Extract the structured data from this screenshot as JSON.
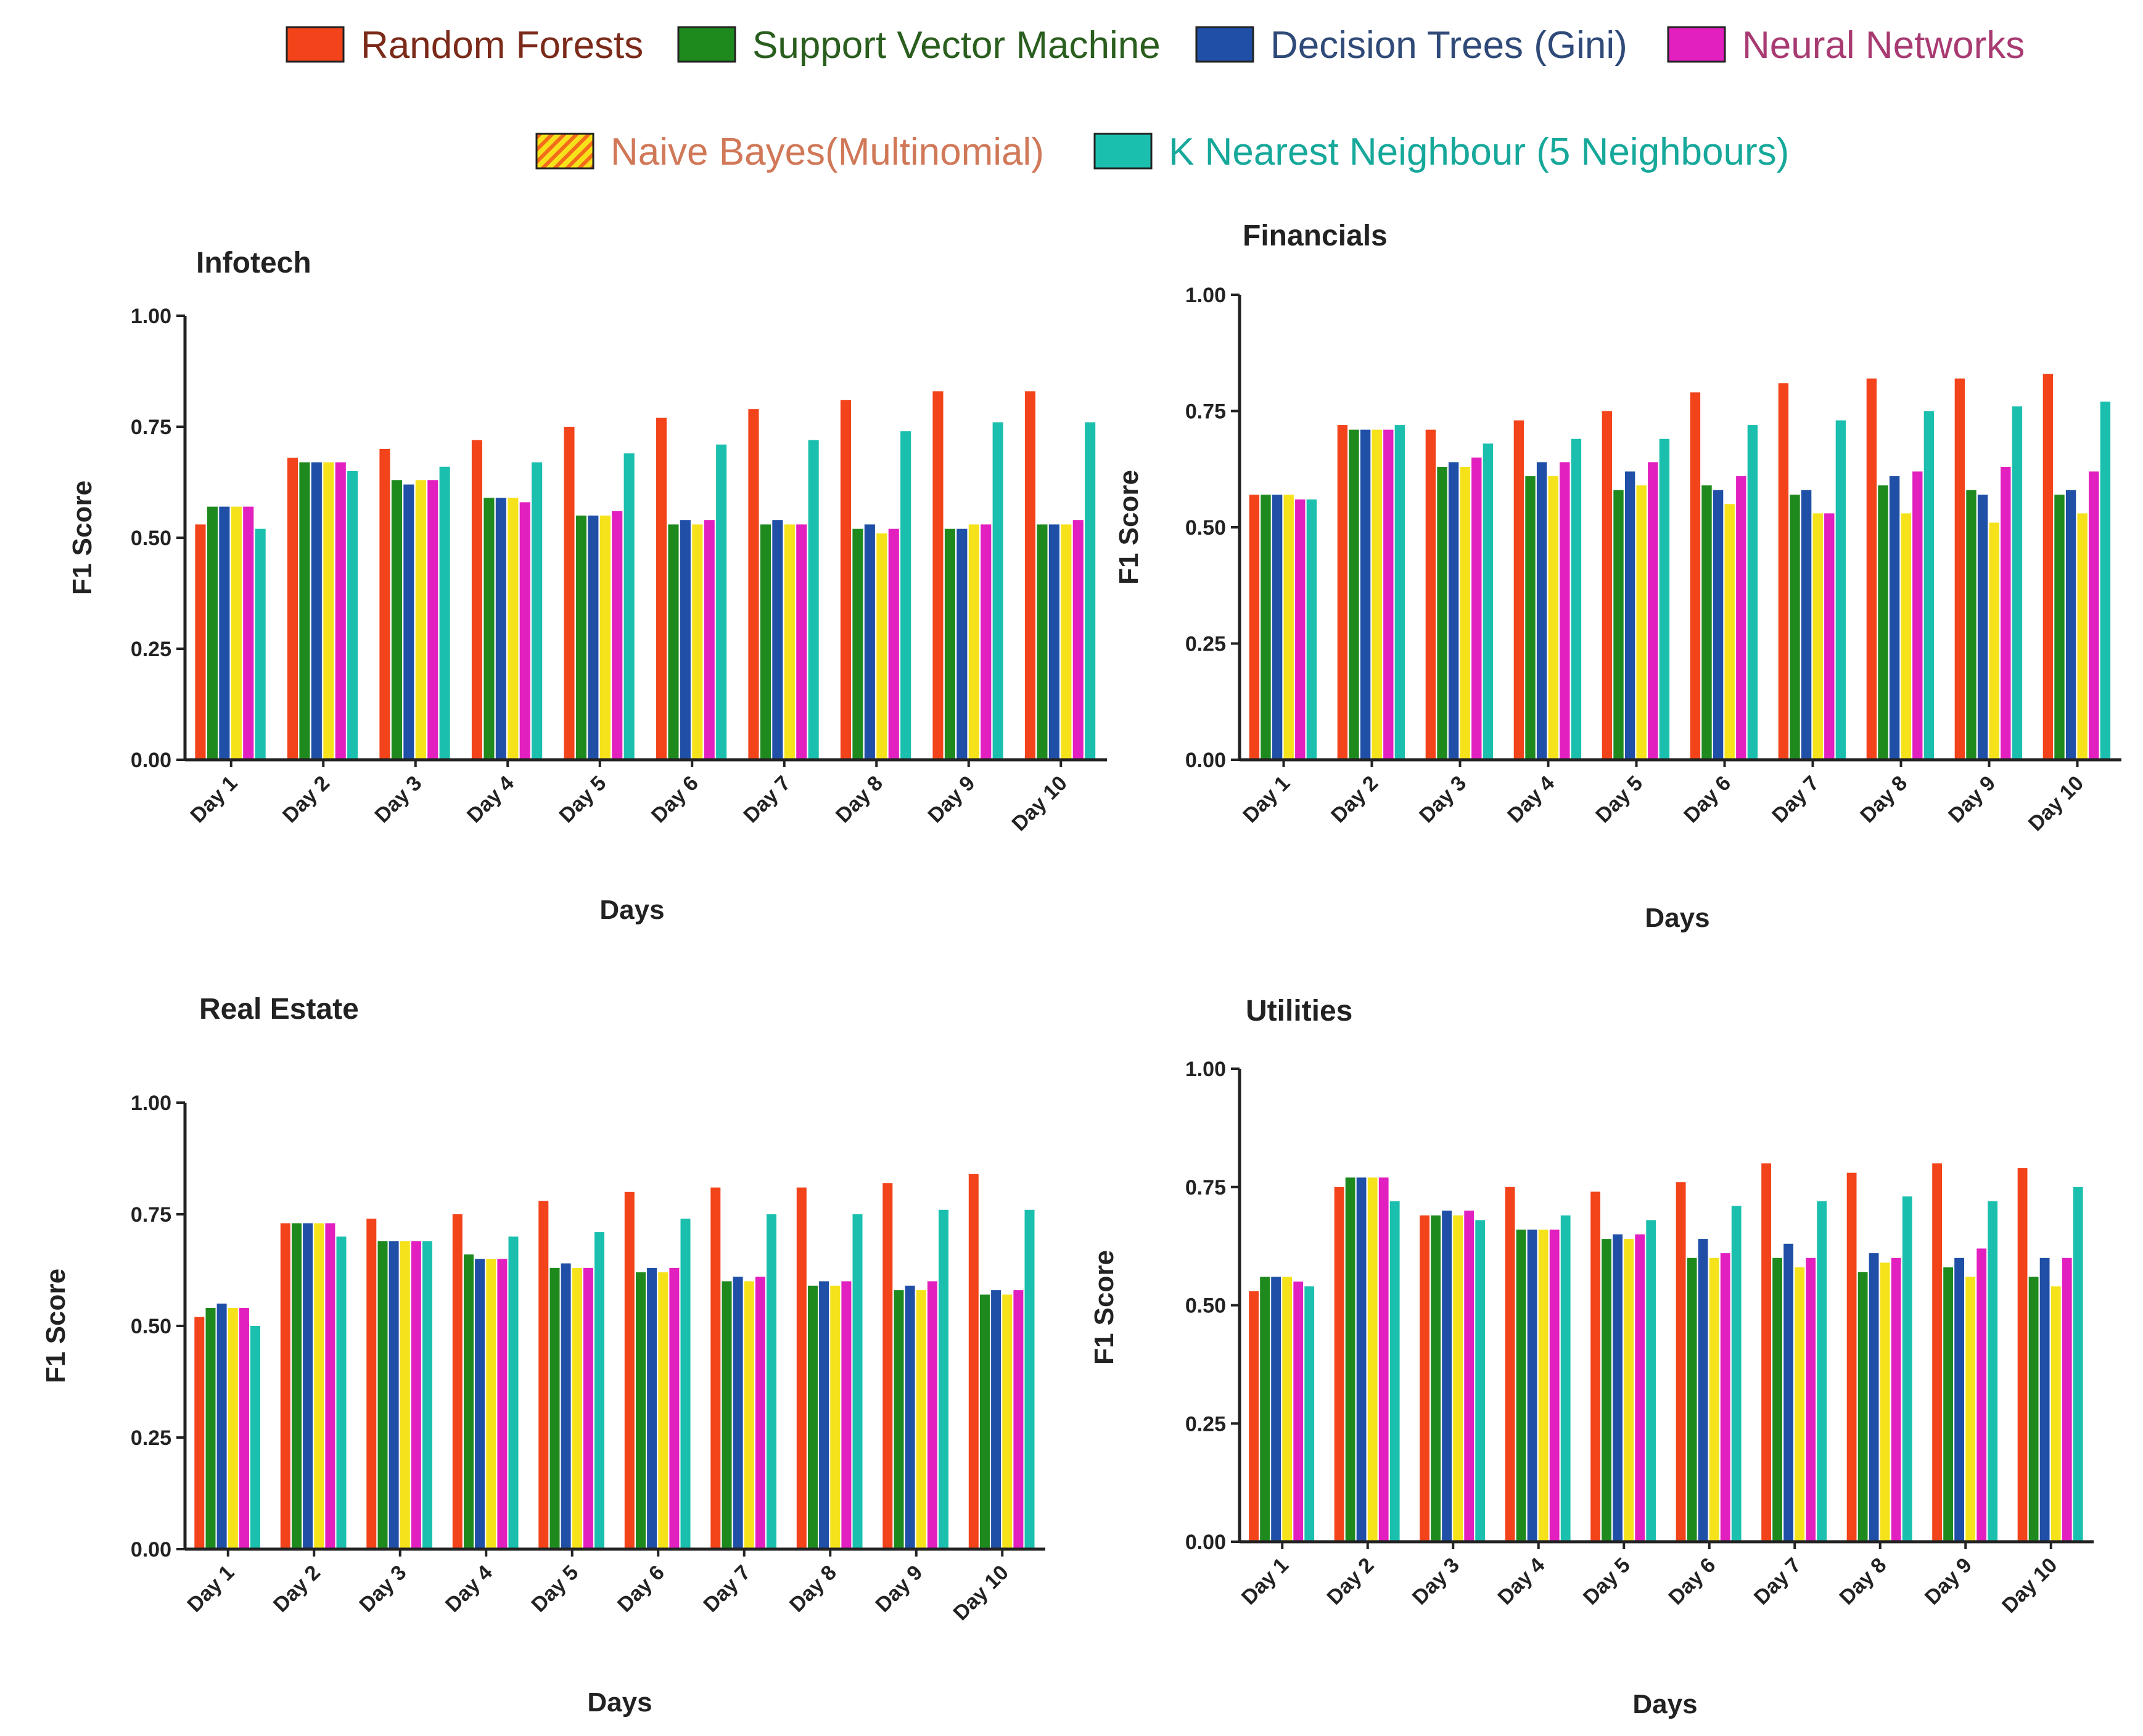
{
  "legend": {
    "items": [
      {
        "label": "Random Forests",
        "color": "#f2431a",
        "text_color": "#7b2a1a"
      },
      {
        "label": "Support Vector Machine",
        "color": "#1e8a1e",
        "text_color": "#2a5e1e"
      },
      {
        "label": "Decision Trees (Gini)",
        "color": "#1f4fa6",
        "text_color": "#2f4a78"
      },
      {
        "label": "Neural Networks",
        "color": "#e21fbf",
        "text_color": "#a83a72"
      },
      {
        "label": "Naive Bayes(Multinomial)",
        "color": "#f5e21a",
        "text_color": "#d07858"
      },
      {
        "label": "K Nearest Neighbour (5 Neighbours)",
        "color": "#1bbfae",
        "text_color": "#16a89a"
      }
    ]
  },
  "chart_data": [
    {
      "type": "bar",
      "title": "Infotech",
      "xlabel": "Days",
      "ylabel": "F1 Score",
      "ylim": [
        0,
        1
      ],
      "yticks": [
        "0.00",
        "0.25",
        "0.50",
        "0.75",
        "1.00"
      ],
      "categories": [
        "Day 1",
        "Day 2",
        "Day 3",
        "Day 4",
        "Day 5",
        "Day 6",
        "Day 7",
        "Day 8",
        "Day 9",
        "Day 10"
      ],
      "series": [
        {
          "name": "Random Forests",
          "values": [
            0.53,
            0.68,
            0.7,
            0.72,
            0.75,
            0.77,
            0.79,
            0.81,
            0.83,
            0.83
          ]
        },
        {
          "name": "Support Vector Machine",
          "values": [
            0.57,
            0.67,
            0.63,
            0.59,
            0.55,
            0.53,
            0.53,
            0.52,
            0.52,
            0.53
          ]
        },
        {
          "name": "Decision Trees (Gini)",
          "values": [
            0.57,
            0.67,
            0.62,
            0.59,
            0.55,
            0.54,
            0.54,
            0.53,
            0.52,
            0.53
          ]
        },
        {
          "name": "Naive Bayes(Multinomial)",
          "values": [
            0.57,
            0.67,
            0.63,
            0.59,
            0.55,
            0.53,
            0.53,
            0.51,
            0.53,
            0.53
          ]
        },
        {
          "name": "Neural Networks",
          "values": [
            0.57,
            0.67,
            0.63,
            0.58,
            0.56,
            0.54,
            0.53,
            0.52,
            0.53,
            0.54
          ]
        },
        {
          "name": "K Nearest Neighbour (5 Neighbours)",
          "values": [
            0.52,
            0.65,
            0.66,
            0.67,
            0.69,
            0.71,
            0.72,
            0.74,
            0.76,
            0.76
          ]
        }
      ]
    },
    {
      "type": "bar",
      "title": "Financials",
      "xlabel": "Days",
      "ylabel": "F1 Score",
      "ylim": [
        0,
        1
      ],
      "yticks": [
        "0.00",
        "0.25",
        "0.50",
        "0.75",
        "1.00"
      ],
      "categories": [
        "Day 1",
        "Day 2",
        "Day 3",
        "Day 4",
        "Day 5",
        "Day 6",
        "Day 7",
        "Day 8",
        "Day 9",
        "Day 10"
      ],
      "series": [
        {
          "name": "Random Forests",
          "values": [
            0.57,
            0.72,
            0.71,
            0.73,
            0.75,
            0.79,
            0.81,
            0.82,
            0.82,
            0.83
          ]
        },
        {
          "name": "Support Vector Machine",
          "values": [
            0.57,
            0.71,
            0.63,
            0.61,
            0.58,
            0.59,
            0.57,
            0.59,
            0.58,
            0.57
          ]
        },
        {
          "name": "Decision Trees (Gini)",
          "values": [
            0.57,
            0.71,
            0.64,
            0.64,
            0.62,
            0.58,
            0.58,
            0.61,
            0.57,
            0.58
          ]
        },
        {
          "name": "Naive Bayes(Multinomial)",
          "values": [
            0.57,
            0.71,
            0.63,
            0.61,
            0.59,
            0.55,
            0.53,
            0.53,
            0.51,
            0.53
          ]
        },
        {
          "name": "Neural Networks",
          "values": [
            0.56,
            0.71,
            0.65,
            0.64,
            0.64,
            0.61,
            0.53,
            0.62,
            0.63,
            0.62
          ]
        },
        {
          "name": "K Nearest Neighbour (5 Neighbours)",
          "values": [
            0.56,
            0.72,
            0.68,
            0.69,
            0.69,
            0.72,
            0.73,
            0.75,
            0.76,
            0.77
          ]
        }
      ]
    },
    {
      "type": "bar",
      "title": "Real Estate",
      "xlabel": "Days",
      "ylabel": "F1 Score",
      "ylim": [
        0,
        1
      ],
      "yticks": [
        "0.00",
        "0.25",
        "0.50",
        "0.75",
        "1.00"
      ],
      "categories": [
        "Day 1",
        "Day 2",
        "Day 3",
        "Day 4",
        "Day 5",
        "Day 6",
        "Day 7",
        "Day 8",
        "Day 9",
        "Day 10"
      ],
      "series": [
        {
          "name": "Random Forests",
          "values": [
            0.52,
            0.73,
            0.74,
            0.75,
            0.78,
            0.8,
            0.81,
            0.81,
            0.82,
            0.84
          ]
        },
        {
          "name": "Support Vector Machine",
          "values": [
            0.54,
            0.73,
            0.69,
            0.66,
            0.63,
            0.62,
            0.6,
            0.59,
            0.58,
            0.57
          ]
        },
        {
          "name": "Decision Trees (Gini)",
          "values": [
            0.55,
            0.73,
            0.69,
            0.65,
            0.64,
            0.63,
            0.61,
            0.6,
            0.59,
            0.58
          ]
        },
        {
          "name": "Naive Bayes(Multinomial)",
          "values": [
            0.54,
            0.73,
            0.69,
            0.65,
            0.63,
            0.62,
            0.6,
            0.59,
            0.58,
            0.57
          ]
        },
        {
          "name": "Neural Networks",
          "values": [
            0.54,
            0.73,
            0.69,
            0.65,
            0.63,
            0.63,
            0.61,
            0.6,
            0.6,
            0.58
          ]
        },
        {
          "name": "K Nearest Neighbour (5 Neighbours)",
          "values": [
            0.5,
            0.7,
            0.69,
            0.7,
            0.71,
            0.74,
            0.75,
            0.75,
            0.76,
            0.76
          ]
        }
      ]
    },
    {
      "type": "bar",
      "title": "Utilities",
      "xlabel": "Days",
      "ylabel": "F1 Score",
      "ylim": [
        0,
        1
      ],
      "yticks": [
        "0.00",
        "0.25",
        "0.50",
        "0.75",
        "1.00"
      ],
      "categories": [
        "Day 1",
        "Day 2",
        "Day 3",
        "Day 4",
        "Day 5",
        "Day 6",
        "Day 7",
        "Day 8",
        "Day 9",
        "Day 10"
      ],
      "series": [
        {
          "name": "Random Forests",
          "values": [
            0.53,
            0.75,
            0.69,
            0.75,
            0.74,
            0.76,
            0.8,
            0.78,
            0.8,
            0.79
          ]
        },
        {
          "name": "Support Vector Machine",
          "values": [
            0.56,
            0.77,
            0.69,
            0.66,
            0.64,
            0.6,
            0.6,
            0.57,
            0.58,
            0.56
          ]
        },
        {
          "name": "Decision Trees (Gini)",
          "values": [
            0.56,
            0.77,
            0.7,
            0.66,
            0.65,
            0.64,
            0.63,
            0.61,
            0.6,
            0.6
          ]
        },
        {
          "name": "Naive Bayes(Multinomial)",
          "values": [
            0.56,
            0.77,
            0.69,
            0.66,
            0.64,
            0.6,
            0.58,
            0.59,
            0.56,
            0.54
          ]
        },
        {
          "name": "Neural Networks",
          "values": [
            0.55,
            0.77,
            0.7,
            0.66,
            0.65,
            0.61,
            0.6,
            0.6,
            0.62,
            0.6
          ]
        },
        {
          "name": "K Nearest Neighbour (5 Neighbours)",
          "values": [
            0.54,
            0.72,
            0.68,
            0.69,
            0.68,
            0.71,
            0.72,
            0.73,
            0.72,
            0.75
          ]
        }
      ]
    }
  ]
}
